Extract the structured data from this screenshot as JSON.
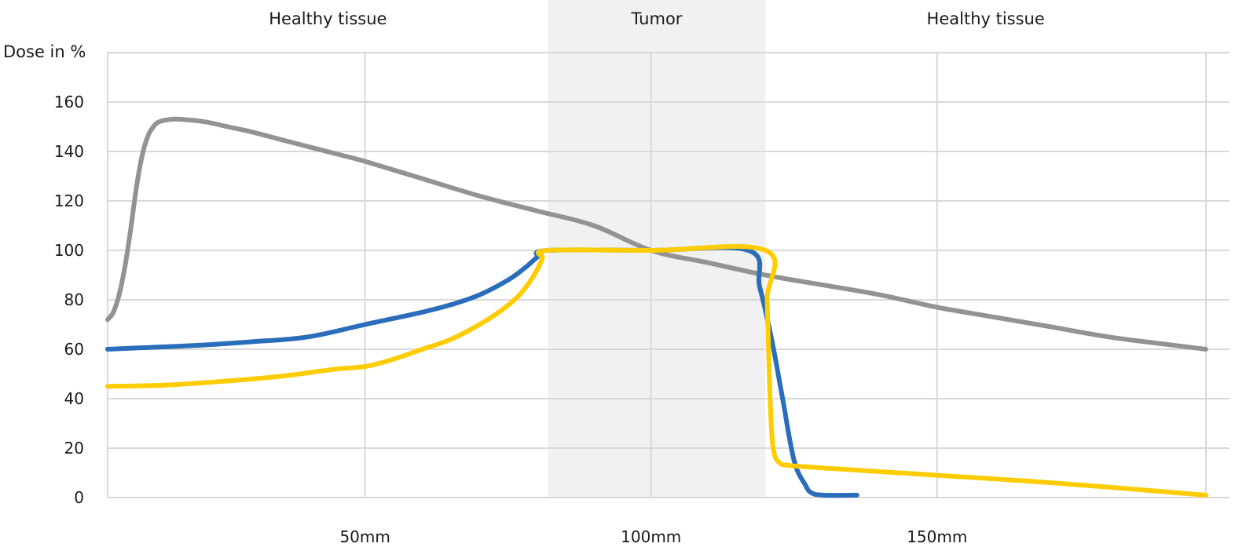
{
  "chart_data": {
    "type": "line",
    "title": "",
    "ylabel": "Dose in %",
    "xlabel": "",
    "xlim": [
      5,
      197
    ],
    "ylim": [
      0,
      180
    ],
    "yticks": [
      0,
      20,
      40,
      60,
      80,
      100,
      120,
      140,
      160
    ],
    "xticks": [
      {
        "value": 50,
        "label": "50mm"
      },
      {
        "value": 100,
        "label": "100mm"
      },
      {
        "value": 150,
        "label": "150mm"
      }
    ],
    "x_gridlines": [
      5,
      50,
      100,
      150,
      197
    ],
    "grid": true,
    "regions": [
      {
        "name": "Healthy tissue",
        "x0": 5,
        "x1": 82,
        "shaded": false
      },
      {
        "name": "Tumor",
        "x0": 82,
        "x1": 120,
        "shaded": true
      },
      {
        "name": "Healthy tissue",
        "x0": 120,
        "x1": 197,
        "shaded": false
      }
    ],
    "series": [
      {
        "color": "#939393",
        "points": [
          [
            5,
            72
          ],
          [
            6,
            75
          ],
          [
            7,
            82
          ],
          [
            8,
            93
          ],
          [
            9,
            108
          ],
          [
            10,
            125
          ],
          [
            11,
            138
          ],
          [
            12,
            146
          ],
          [
            13,
            150
          ],
          [
            14,
            152
          ],
          [
            16,
            153
          ],
          [
            18,
            153
          ],
          [
            22,
            152
          ],
          [
            26,
            150
          ],
          [
            30,
            148
          ],
          [
            35,
            145
          ],
          [
            40,
            142
          ],
          [
            45,
            139
          ],
          [
            50,
            136
          ],
          [
            60,
            129
          ],
          [
            70,
            122
          ],
          [
            80,
            116
          ],
          [
            90,
            110
          ],
          [
            100,
            100
          ],
          [
            110,
            95
          ],
          [
            120,
            90
          ],
          [
            130,
            86
          ],
          [
            140,
            82
          ],
          [
            150,
            77
          ],
          [
            160,
            73
          ],
          [
            170,
            69
          ],
          [
            180,
            65
          ],
          [
            190,
            62
          ],
          [
            197,
            60
          ]
        ]
      },
      {
        "color": "#2a6ebb",
        "points": [
          [
            5,
            60
          ],
          [
            10,
            60.5
          ],
          [
            20,
            61.5
          ],
          [
            30,
            63
          ],
          [
            40,
            65
          ],
          [
            50,
            70
          ],
          [
            60,
            75
          ],
          [
            65,
            78
          ],
          [
            70,
            82
          ],
          [
            75,
            88
          ],
          [
            78,
            93
          ],
          [
            80,
            97
          ],
          [
            82,
            100
          ],
          [
            100,
            100
          ],
          [
            117,
            100
          ],
          [
            119,
            85
          ],
          [
            121,
            65
          ],
          [
            123,
            40
          ],
          [
            125,
            15
          ],
          [
            127,
            5
          ],
          [
            128,
            2
          ],
          [
            130,
            1
          ],
          [
            136,
            1
          ]
        ]
      },
      {
        "color": "#ffcc00",
        "points": [
          [
            5,
            45
          ],
          [
            15,
            45.5
          ],
          [
            25,
            47
          ],
          [
            35,
            49
          ],
          [
            45,
            52
          ],
          [
            50,
            53
          ],
          [
            55,
            56
          ],
          [
            60,
            60
          ],
          [
            65,
            64
          ],
          [
            70,
            70
          ],
          [
            74,
            76
          ],
          [
            77,
            82
          ],
          [
            79,
            88
          ],
          [
            80.5,
            94
          ],
          [
            81,
            97
          ],
          [
            82,
            100
          ],
          [
            100,
            100
          ],
          [
            120,
            100
          ],
          [
            120.3,
            80
          ],
          [
            120.6,
            55
          ],
          [
            121,
            30
          ],
          [
            121.5,
            18
          ],
          [
            122.5,
            14
          ],
          [
            124,
            13
          ],
          [
            130,
            12
          ],
          [
            150,
            9
          ],
          [
            170,
            6
          ],
          [
            197,
            1
          ]
        ]
      }
    ]
  }
}
